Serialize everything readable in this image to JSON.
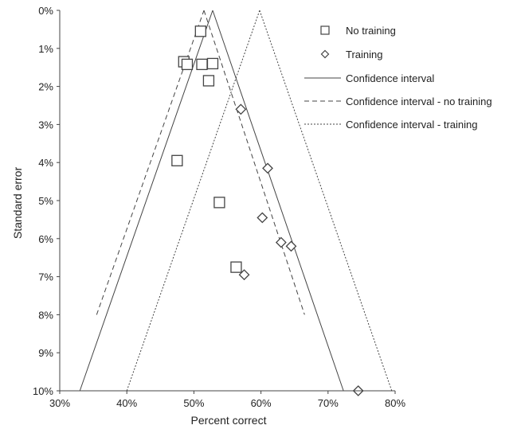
{
  "chart_data": {
    "type": "scatter",
    "title": "",
    "xlabel": "Percent correct",
    "ylabel": "Standard error",
    "xlim": [
      30,
      80
    ],
    "ylim": [
      0,
      10
    ],
    "y_inverted": true,
    "grid": false,
    "legend_position": "top-right",
    "x_ticks": [
      "30%",
      "40%",
      "50%",
      "60%",
      "70%",
      "80%"
    ],
    "y_ticks": [
      "0%",
      "1%",
      "2%",
      "3%",
      "4%",
      "5%",
      "6%",
      "7%",
      "8%",
      "9%",
      "10%"
    ],
    "series": [
      {
        "name": "No training",
        "marker": "square",
        "points": [
          {
            "x": 51.0,
            "y": 0.55
          },
          {
            "x": 48.5,
            "y": 1.35
          },
          {
            "x": 49.0,
            "y": 1.42
          },
          {
            "x": 51.2,
            "y": 1.42
          },
          {
            "x": 52.8,
            "y": 1.4
          },
          {
            "x": 52.2,
            "y": 1.85
          },
          {
            "x": 47.5,
            "y": 3.95
          },
          {
            "x": 53.8,
            "y": 5.05
          },
          {
            "x": 56.3,
            "y": 6.75
          }
        ]
      },
      {
        "name": "Training",
        "marker": "diamond",
        "points": [
          {
            "x": 57.0,
            "y": 2.6
          },
          {
            "x": 61.0,
            "y": 4.15
          },
          {
            "x": 60.2,
            "y": 5.45
          },
          {
            "x": 63.0,
            "y": 6.1
          },
          {
            "x": 64.5,
            "y": 6.2
          },
          {
            "x": 57.5,
            "y": 6.95
          },
          {
            "x": 74.5,
            "y": 10.0
          }
        ]
      }
    ],
    "lines": [
      {
        "name": "Confidence interval",
        "style": "solid",
        "segments": [
          [
            [
              33.0,
              10.0
            ],
            [
              52.8,
              0.0
            ]
          ],
          [
            [
              52.8,
              0.0
            ],
            [
              72.3,
              10.0
            ]
          ]
        ]
      },
      {
        "name": "Confidence interval - no training",
        "style": "dashed",
        "segments": [
          [
            [
              35.5,
              8.0
            ],
            [
              51.5,
              0.0
            ]
          ],
          [
            [
              51.5,
              0.0
            ],
            [
              66.5,
              8.0
            ]
          ]
        ]
      },
      {
        "name": "Confidence interval - training",
        "style": "dotted",
        "segments": [
          [
            [
              40.0,
              10.0
            ],
            [
              59.8,
              0.0
            ]
          ],
          [
            [
              59.8,
              0.0
            ],
            [
              79.5,
              10.0
            ]
          ]
        ]
      }
    ]
  }
}
